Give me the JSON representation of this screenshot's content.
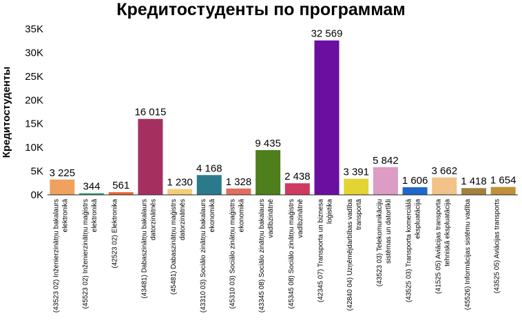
{
  "chart_data": {
    "type": "bar",
    "title": "Кредитостуденты по программам",
    "xlabel": "",
    "ylabel": "Кредитостуденты",
    "ylim": [
      0,
      35000
    ],
    "yticks": [
      {
        "value": 0,
        "label": "0K"
      },
      {
        "value": 5000,
        "label": "5K"
      },
      {
        "value": 10000,
        "label": "10K"
      },
      {
        "value": 15000,
        "label": "15K"
      },
      {
        "value": 20000,
        "label": "20K"
      },
      {
        "value": 25000,
        "label": "25K"
      },
      {
        "value": 30000,
        "label": "30K"
      },
      {
        "value": 35000,
        "label": "35K"
      }
    ],
    "grid": false,
    "legend": "none",
    "categories": [
      [
        "(43523 02) Inženierzinātņu bakalaurs",
        "elektronikā"
      ],
      [
        "(45523 02) Inženierzinātņu maģistrs",
        "elektronikā"
      ],
      [
        "(42523 02) Elektronika"
      ],
      [
        "(43481) Dabaszinātņu bakalaurs",
        "datorzinātnēs"
      ],
      [
        "(45481) Dabaszinātņu maģistrs",
        "datorzinātnēs"
      ],
      [
        "(43310 03) Sociālo zinātņu bakalaurs",
        "ekonomikā"
      ],
      [
        "(45310 03) Sociālo zinātņu maģistrs",
        "ekonomikā"
      ],
      [
        "(43345 08) Sociālo zinātņu bakalaurs",
        "vadībzinātnē"
      ],
      [
        "(45345 08) Sociālo zinātņu maģistrs",
        "vadībzinātnē"
      ],
      [
        "(42345 07) Transporta un biznesa",
        "loģistika"
      ],
      [
        "(42840 04) Uzņēmējdarbības vadība",
        "transportā"
      ],
      [
        "(43523 03) Telekomunikāciju",
        "sistēmas un datortīkli"
      ],
      [
        "(43525 03) Transporta komerciālā",
        "ekspluatācija"
      ],
      [
        "(41525 05) Aviācijas transporta",
        "tehniskā ekspluatācija"
      ],
      [
        "(45526) Informācijas sistēmu vadība"
      ],
      [
        "(43525 05) Aviācijas transports"
      ]
    ],
    "values": [
      3225,
      344,
      561,
      16015,
      1230,
      4168,
      1328,
      9435,
      2438,
      32569,
      3391,
      5842,
      1606,
      3662,
      1418,
      1654
    ],
    "value_labels": [
      "3 225",
      "344",
      "561",
      "16 015",
      "1 230",
      "4 168",
      "1 328",
      "9 435",
      "2 438",
      "32 569",
      "3 391",
      "5 842",
      "1 606",
      "3 662",
      "1 418",
      "1 654"
    ],
    "colors": [
      "#f0a15e",
      "#3fa07f",
      "#e9693a",
      "#a53060",
      "#f6cd77",
      "#2a7a8c",
      "#e06f5f",
      "#4f7f1c",
      "#d03a60",
      "#6a0fa0",
      "#e3d433",
      "#dc9cc4",
      "#1f68c8",
      "#f2c288",
      "#a38040",
      "#c0903a"
    ]
  }
}
